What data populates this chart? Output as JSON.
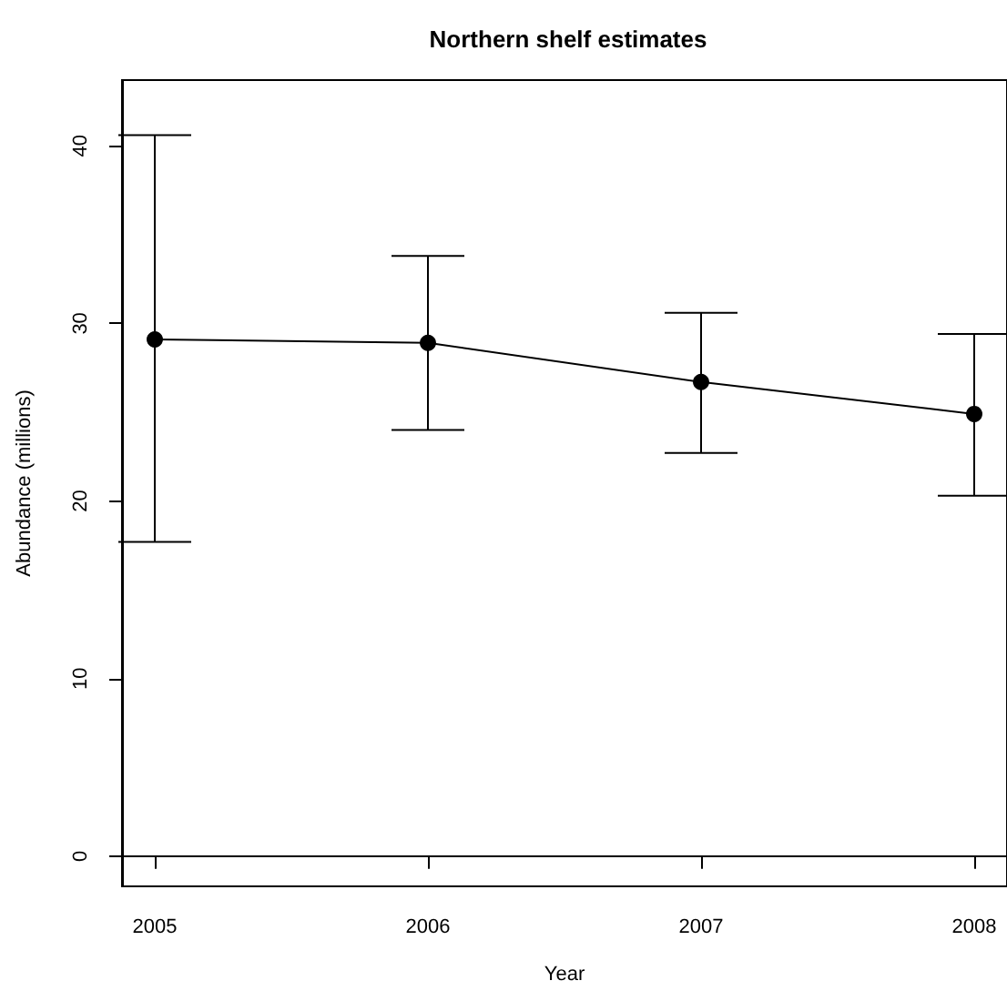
{
  "chart_data": {
    "type": "line",
    "title": "Northern shelf estimates",
    "xlabel": "Year",
    "ylabel": "Abundance (millions)",
    "x": [
      2005,
      2006,
      2007,
      2008
    ],
    "series": [
      {
        "color": "#000000",
        "values": [
          29.1,
          28.9,
          26.7,
          24.9
        ],
        "errors": [
          [
            17.7,
            40.6
          ],
          [
            24.0,
            33.8
          ],
          [
            22.7,
            30.6
          ],
          [
            20.3,
            29.4
          ]
        ]
      }
    ],
    "xlim": [
      2004.88,
      2008.12
    ],
    "xticks": [
      2005,
      2006,
      2007,
      2008
    ],
    "ylim": [
      -1.7,
      43.7
    ],
    "yticks": [
      0,
      10,
      20,
      30,
      40
    ],
    "marker": "circle",
    "line_style": "solid"
  }
}
